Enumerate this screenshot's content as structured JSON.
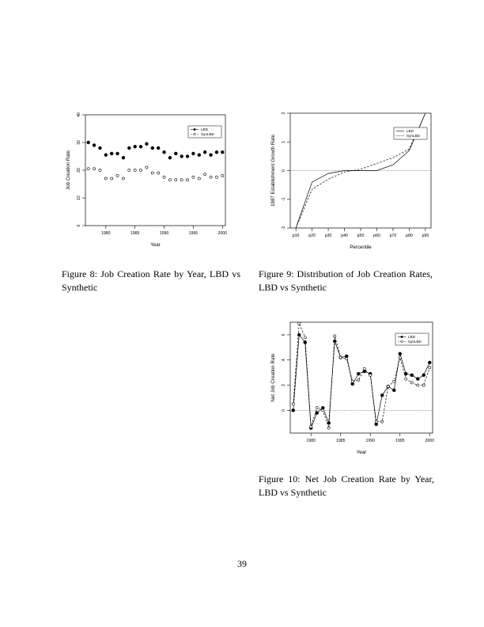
{
  "page_number": "39",
  "figures": [
    {
      "caption": "Figure 8: Job Creation Rate by Year, LBD vs Synthetic"
    },
    {
      "caption": "Figure 9: Distribution of Job Creation Rates, LBD vs Synthetic"
    },
    {
      "caption": "Figure 10: Net Job Creation Rate by Year, LBD vs Synthetic"
    }
  ],
  "chart_data": [
    {
      "type": "scatter",
      "xlabel": "Year",
      "ylabel": "Job Creation Rate",
      "xlim": [
        1976.5,
        2000.5
      ],
      "ylim": [
        0,
        40
      ],
      "xticks": [
        1980,
        1985,
        1990,
        1995,
        2000
      ],
      "yticks": [
        0,
        10,
        20,
        30,
        40
      ],
      "legend_position": "top-right",
      "x": [
        1977,
        1978,
        1979,
        1980,
        1981,
        1982,
        1983,
        1984,
        1985,
        1986,
        1987,
        1988,
        1989,
        1990,
        1991,
        1992,
        1993,
        1994,
        1995,
        1996,
        1997,
        1998,
        1999,
        2000
      ],
      "series": [
        {
          "name": "LBD",
          "marker": "filled-circle",
          "values": [
            30,
            29,
            28,
            25.5,
            26,
            26,
            24.5,
            28,
            28.5,
            28.5,
            29.5,
            28,
            28,
            26.5,
            24.5,
            26,
            25,
            25,
            26,
            25.5,
            26.5,
            25.5,
            26.5,
            26.5
          ]
        },
        {
          "name": "SynLBD",
          "marker": "open-circle",
          "values": [
            20.5,
            20.5,
            20,
            17,
            17,
            18,
            17,
            20,
            20,
            20,
            21,
            19,
            19,
            17.5,
            16.5,
            16.5,
            16.5,
            16.5,
            17.5,
            17,
            18.5,
            17.5,
            17.5,
            18
          ]
        }
      ]
    },
    {
      "type": "line",
      "xlabel": "Percentile",
      "ylabel": "1987 Establishment Growth Rate",
      "categories": [
        "p10",
        "p20",
        "p30",
        "p40",
        "p50",
        "p60",
        "p70",
        "p80",
        "p90"
      ],
      "ylim": [
        -2,
        2
      ],
      "yticks": [
        -2,
        -1,
        0,
        1,
        2
      ],
      "reference_line": 0,
      "legend_position": "top-right",
      "series": [
        {
          "name": "LBD",
          "style": "solid",
          "values": [
            -2,
            -0.4,
            -0.1,
            0,
            0,
            0,
            0.2,
            0.7,
            2
          ]
        },
        {
          "name": "SynLBD",
          "style": "dashed",
          "values": [
            -2,
            -0.65,
            -0.3,
            -0.05,
            0.05,
            0.25,
            0.45,
            0.75,
            2
          ]
        }
      ]
    },
    {
      "type": "line",
      "xlabel": "Year",
      "ylabel": "Net Job Creation Rate",
      "xlim": [
        1976.5,
        2000.5
      ],
      "ylim": [
        -1.8,
        7
      ],
      "xticks": [
        1980,
        1985,
        1990,
        1995,
        2000
      ],
      "yticks": [
        0,
        2,
        4,
        6
      ],
      "reference_line": 0,
      "legend_position": "top-right",
      "x": [
        1977,
        1978,
        1979,
        1980,
        1981,
        1982,
        1983,
        1984,
        1985,
        1986,
        1987,
        1988,
        1989,
        1990,
        1991,
        1992,
        1993,
        1994,
        1995,
        1996,
        1997,
        1998,
        1999,
        2000
      ],
      "series": [
        {
          "name": "LBD",
          "style": "solid",
          "marker": "filled-circle",
          "values": [
            0,
            6,
            5.4,
            -1.4,
            -0.2,
            0.2,
            -1,
            5.5,
            4.2,
            4.3,
            2.1,
            2.9,
            3.1,
            2.9,
            -1.1,
            1.2,
            1.9,
            1.6,
            4.5,
            2.9,
            2.8,
            2.5,
            2.8,
            3.8
          ]
        },
        {
          "name": "SynLBD",
          "style": "dashed",
          "marker": "open-circle",
          "values": [
            0.5,
            6.9,
            5.8,
            -1.3,
            0.2,
            0,
            -1.4,
            5.9,
            4.2,
            4.1,
            2.3,
            2.4,
            3.3,
            2.8,
            -0.9,
            -0.9,
            1.9,
            2.3,
            4.2,
            2.5,
            2.2,
            2,
            2,
            3.4
          ]
        }
      ]
    }
  ]
}
